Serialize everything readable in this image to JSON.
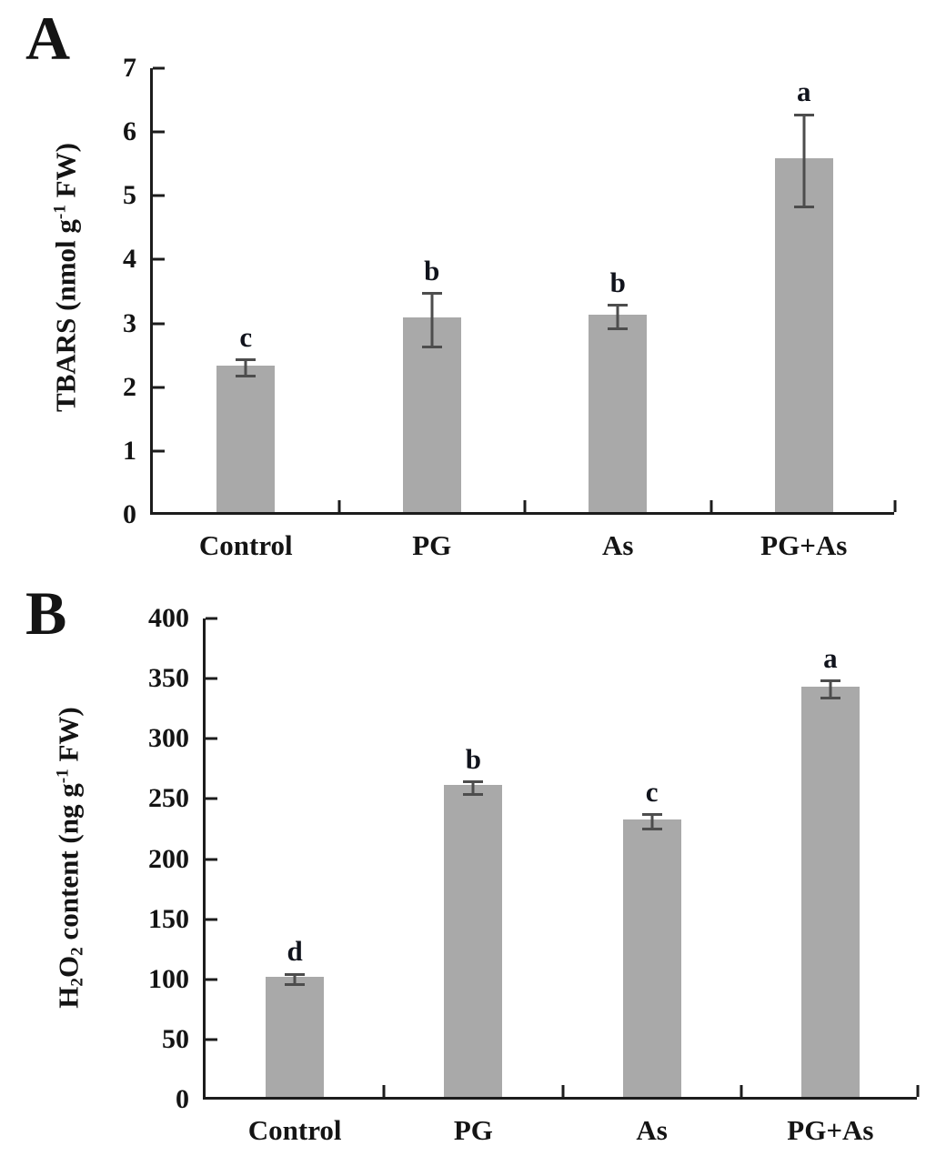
{
  "figure": {
    "background": "#ffffff",
    "bar_color": "#a9a9a9",
    "error_bar_color": "#4d4d4d",
    "axis_color": "#1c1c1c",
    "text_color": "#141414"
  },
  "chart_data": [
    {
      "id": "panel-a",
      "panel_letter": "A",
      "type": "bar",
      "title": "",
      "xlabel": "",
      "ylabel": "TBARS (nmol g-1 FW)",
      "ylabel_segments": [
        {
          "t": "TBARS (nmol g"
        },
        {
          "t": "-1",
          "style": "sup"
        },
        {
          "t": " FW)"
        }
      ],
      "categories": [
        "Control",
        "PG",
        "As",
        "PG+As"
      ],
      "values": [
        2.3,
        3.05,
        3.1,
        5.55
      ],
      "errors": [
        0.13,
        0.42,
        0.18,
        0.72
      ],
      "sig_letters": [
        "c",
        "b",
        "b",
        "a"
      ],
      "ylim": [
        0,
        7
      ],
      "yticks": [
        0,
        1,
        2,
        3,
        4,
        5,
        6,
        7
      ],
      "grid": false,
      "legend": null
    },
    {
      "id": "panel-b",
      "panel_letter": "B",
      "type": "bar",
      "title": "",
      "xlabel": "",
      "ylabel": "H2O2 content (ng g-1 FW)",
      "ylabel_segments": [
        {
          "t": "H"
        },
        {
          "t": "2",
          "style": "sub"
        },
        {
          "t": "O"
        },
        {
          "t": "2",
          "style": "sub"
        },
        {
          "t": " content (ng g"
        },
        {
          "t": "-1",
          "style": "sup"
        },
        {
          "t": " FW)"
        }
      ],
      "categories": [
        "Control",
        "PG",
        "As",
        "PG+As"
      ],
      "values": [
        100,
        259,
        231,
        341
      ],
      "errors": [
        4,
        5,
        6,
        7
      ],
      "sig_letters": [
        "d",
        "b",
        "c",
        "a"
      ],
      "ylim": [
        0,
        400
      ],
      "yticks": [
        0,
        50,
        100,
        150,
        200,
        250,
        300,
        350,
        400
      ],
      "grid": false,
      "legend": null
    }
  ]
}
